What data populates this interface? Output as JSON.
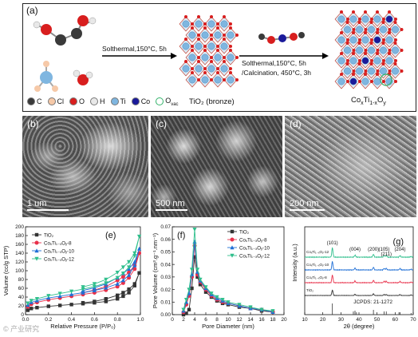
{
  "panel_a": {
    "label": "(a)",
    "step1_label": "Solthermal,150°C, 5h",
    "step2_label_line1": "Solthermal,150°C, 5h",
    "step2_label_line2": "/Calcination, 450°C, 3h",
    "product1": "TiO₂ (bronze)",
    "product2_prefix": "Co",
    "product2_x": "x",
    "product2_mid": "Ti",
    "product2_sub": "1-x",
    "product2_o": "O",
    "product2_y": "y",
    "legend": [
      {
        "symbol": "C",
        "color": "#3a3a3a"
      },
      {
        "symbol": "Cl",
        "color": "#f6c9a8"
      },
      {
        "symbol": "O",
        "color": "#d81e1e"
      },
      {
        "symbol": "H",
        "color": "#e8e8e8"
      },
      {
        "symbol": "Ti",
        "color": "#7fb6e0"
      },
      {
        "symbol": "Co",
        "color": "#1a1a9a"
      }
    ],
    "legend_vac_prefix": "O",
    "legend_vac_sub": "vac",
    "vac_color": "#33b36a"
  },
  "panel_b": {
    "label": "(b)",
    "scale": "1 um"
  },
  "panel_c": {
    "label": "(c)",
    "scale": "500 nm"
  },
  "panel_d": {
    "label": "(d)",
    "scale": "200 nm"
  },
  "chart_data": [
    {
      "type": "line",
      "panel": "(e)",
      "xlabel": "Relative Pressure (P/P₀)",
      "ylabel": "Volume (cc/g STP)",
      "xlim": [
        0,
        1.0
      ],
      "ylim": [
        0,
        200
      ],
      "xticks": [
        "0.0",
        "0.2",
        "0.4",
        "0.6",
        "0.8",
        "1.0"
      ],
      "yticks": [
        "0",
        "20",
        "40",
        "60",
        "80",
        "100",
        "120",
        "140",
        "160",
        "180",
        "200"
      ],
      "legend": "top-left",
      "series": [
        {
          "name": "TiO₂",
          "color": "#333333",
          "marker": "square",
          "x": [
            0.02,
            0.05,
            0.1,
            0.2,
            0.3,
            0.4,
            0.5,
            0.6,
            0.7,
            0.8,
            0.85,
            0.9,
            0.95,
            0.99,
            0.95,
            0.9,
            0.85,
            0.8,
            0.7,
            0.6,
            0.5
          ],
          "y": [
            10,
            14,
            16,
            19,
            21,
            23,
            25,
            27,
            30,
            36,
            42,
            50,
            66,
            95,
            70,
            58,
            50,
            44,
            36,
            30,
            27
          ]
        },
        {
          "name": "CoₓTi₁₋ₓOᵧ‑8",
          "color": "#e8304a",
          "marker": "circle",
          "x": [
            0.02,
            0.05,
            0.1,
            0.2,
            0.3,
            0.4,
            0.5,
            0.6,
            0.7,
            0.8,
            0.85,
            0.9,
            0.95,
            0.99,
            0.95,
            0.9,
            0.85,
            0.8,
            0.7,
            0.6,
            0.5
          ],
          "y": [
            18,
            24,
            28,
            34,
            38,
            42,
            46,
            50,
            56,
            64,
            72,
            84,
            104,
            140,
            112,
            96,
            86,
            78,
            64,
            56,
            50
          ]
        },
        {
          "name": "CoₓTi₁₋ₓOᵧ‑10",
          "color": "#1f6fd6",
          "marker": "triangle-up",
          "x": [
            0.02,
            0.05,
            0.1,
            0.2,
            0.3,
            0.4,
            0.5,
            0.6,
            0.7,
            0.8,
            0.85,
            0.9,
            0.95,
            0.99,
            0.95,
            0.9,
            0.85,
            0.8,
            0.7,
            0.6,
            0.5
          ],
          "y": [
            22,
            28,
            32,
            38,
            42,
            46,
            50,
            55,
            61,
            70,
            78,
            90,
            112,
            150,
            120,
            104,
            94,
            84,
            70,
            61,
            55
          ]
        },
        {
          "name": "CoₓTi₁₋ₓOᵧ‑12",
          "color": "#2fbf8c",
          "marker": "triangle-down",
          "x": [
            0.02,
            0.05,
            0.1,
            0.2,
            0.3,
            0.4,
            0.5,
            0.6,
            0.7,
            0.8,
            0.85,
            0.9,
            0.95,
            0.99,
            0.95,
            0.9,
            0.85,
            0.8,
            0.7,
            0.6,
            0.5
          ],
          "y": [
            26,
            32,
            36,
            43,
            48,
            53,
            58,
            64,
            72,
            84,
            94,
            108,
            134,
            178,
            140,
            120,
            108,
            96,
            80,
            70,
            63
          ]
        }
      ]
    },
    {
      "type": "line",
      "panel": "(f)",
      "xlabel": "Pore Diameter (nm)",
      "ylabel": "Pore Volume (cm³.g⁻¹.nm⁻¹)",
      "xlim": [
        0,
        20
      ],
      "ylim": [
        0,
        0.07
      ],
      "xticks": [
        "0",
        "2",
        "4",
        "6",
        "8",
        "10",
        "12",
        "14",
        "16",
        "18",
        "20"
      ],
      "yticks": [
        "0.00",
        "0.01",
        "0.02",
        "0.03",
        "0.04",
        "0.05",
        "0.06",
        "0.07"
      ],
      "legend": "top-right",
      "series": [
        {
          "name": "TiO₂",
          "color": "#333333",
          "marker": "square",
          "x": [
            2,
            2.5,
            3,
            3.5,
            4,
            4.5,
            5,
            6,
            7,
            8,
            9,
            10,
            12,
            14,
            16,
            18
          ],
          "y": [
            0.0,
            0.001,
            0.004,
            0.021,
            0.046,
            0.03,
            0.024,
            0.018,
            0.014,
            0.011,
            0.009,
            0.008,
            0.006,
            0.005,
            0.003,
            0.002
          ]
        },
        {
          "name": "CoₓTi₁₋ₓOᵧ‑8",
          "color": "#e8304a",
          "marker": "circle",
          "x": [
            2,
            2.5,
            3,
            3.5,
            4,
            4.5,
            5,
            6,
            7,
            8,
            9,
            10,
            12,
            14,
            16,
            18
          ],
          "y": [
            0.002,
            0.008,
            0.015,
            0.03,
            0.055,
            0.032,
            0.026,
            0.02,
            0.015,
            0.012,
            0.01,
            0.009,
            0.007,
            0.005,
            0.004,
            0.002
          ]
        },
        {
          "name": "CoₓTi₁₋ₓOᵧ‑10",
          "color": "#1f6fd6",
          "marker": "triangle-up",
          "x": [
            2,
            2.5,
            3,
            3.5,
            4,
            4.5,
            5,
            6,
            7,
            8,
            9,
            10,
            12,
            14,
            16,
            18
          ],
          "y": [
            0.003,
            0.01,
            0.017,
            0.032,
            0.058,
            0.034,
            0.027,
            0.021,
            0.016,
            0.013,
            0.011,
            0.009,
            0.007,
            0.005,
            0.004,
            0.002
          ]
        },
        {
          "name": "CoₓTi₁₋ₓOᵧ‑12",
          "color": "#2fbf8c",
          "marker": "triangle-down",
          "x": [
            2,
            2.5,
            3,
            3.5,
            4,
            4.5,
            5,
            6,
            7,
            8,
            9,
            10,
            12,
            14,
            16,
            18
          ],
          "y": [
            0.004,
            0.012,
            0.02,
            0.036,
            0.068,
            0.036,
            0.028,
            0.022,
            0.017,
            0.014,
            0.012,
            0.01,
            0.008,
            0.006,
            0.004,
            0.003
          ]
        }
      ]
    },
    {
      "type": "line",
      "panel": "(g)",
      "xlabel": "2θ (degree)",
      "ylabel": "Intensity (a.u.)",
      "xlim": [
        10,
        70
      ],
      "xticks": [
        "10",
        "20",
        "30",
        "40",
        "50",
        "60",
        "70"
      ],
      "peak_labels": [
        {
          "text": "(101)",
          "x": 25.3
        },
        {
          "text": "(004)",
          "x": 37.8
        },
        {
          "text": "(200)",
          "x": 48.0
        },
        {
          "text": "(105)",
          "x": 53.9
        },
        {
          "text": "(211)",
          "x": 55.1
        },
        {
          "text": "(204)",
          "x": 62.7
        }
      ],
      "reference_label": "JCPDS: 21-1272",
      "reference_peaks": [
        25.3,
        36.9,
        37.8,
        38.6,
        48.0,
        53.9,
        55.1,
        62.1,
        62.7,
        68.8,
        70.3
      ],
      "series": [
        {
          "name": "CoₓTi₁₋ₓOᵧ‑12",
          "color": "#2fbf8c"
        },
        {
          "name": "CoₓTi₁₋ₓOᵧ‑10",
          "color": "#1f6fd6"
        },
        {
          "name": "CoₓTi₁₋ₓOᵧ‑8",
          "color": "#e8304a"
        },
        {
          "name": "TiO₂",
          "color": "#333333"
        }
      ]
    }
  ],
  "watermark": "© 产业研究"
}
